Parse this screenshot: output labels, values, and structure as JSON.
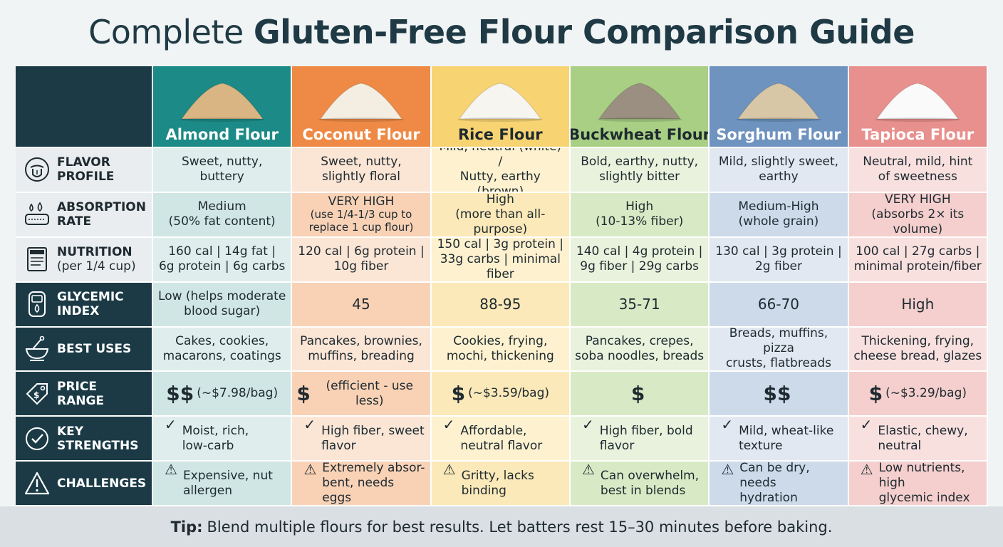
{
  "title": {
    "regular": "Complete",
    "bold": "Gluten-Free Flour Comparison Guide"
  },
  "flours": [
    {
      "name": "Almond Flour",
      "pile_color": "#d9b583"
    },
    {
      "name": "Coconut Flour",
      "pile_color": "#f4ede2"
    },
    {
      "name": "Rice Flour",
      "pile_color": "#f7f5f0"
    },
    {
      "name": "Buckwheat Flour",
      "pile_color": "#9a8f80"
    },
    {
      "name": "Sorghum Flour",
      "pile_color": "#d8c7a6"
    },
    {
      "name": "Tapioca Flour",
      "pile_color": "#fbfafa"
    }
  ],
  "rows": {
    "flavor": {
      "label": "FLAVOR PROFILE",
      "icon": "tongue-icon",
      "cells": [
        [
          "Sweet, nutty,",
          "buttery"
        ],
        [
          "Sweet, nutty,",
          "slightly floral"
        ],
        [
          "Mild, neutral (white) /",
          "Nutty, earthy (brown)"
        ],
        [
          "Bold, earthy, nutty,",
          "slightly bitter"
        ],
        [
          "Mild, slightly sweet,",
          "earthy"
        ],
        [
          "Neutral, mild, hint",
          "of sweetness"
        ]
      ]
    },
    "absorption": {
      "label": "ABSORPTION RATE",
      "icon": "water-drops-icon",
      "cells": [
        [
          "Medium",
          "(50% fat content)"
        ],
        [
          "VERY HIGH",
          "(use 1/4-1/3 cup to",
          "replace 1 cup flour)"
        ],
        [
          "High",
          "(more than all-purpose)"
        ],
        [
          "High",
          "(10-13% fiber)"
        ],
        [
          "Medium-High",
          "(whole grain)"
        ],
        [
          "VERY HIGH",
          "(absorbs 2× its volume)"
        ]
      ]
    },
    "nutrition": {
      "label": "NUTRITION",
      "sublabel": "(per 1/4 cup)",
      "icon": "nutrition-label-icon",
      "cells": [
        [
          "160 cal | 14g fat |",
          "6g protein | 6g carbs"
        ],
        [
          "120 cal | 6g protein |",
          "10g fiber"
        ],
        [
          "150 cal | 3g protein |",
          "33g carbs | minimal fiber"
        ],
        [
          "140 cal | 4g protein |",
          "9g fiber | 29g carbs"
        ],
        [
          "130 cal | 3g protein |",
          "2g fiber"
        ],
        [
          "100 cal | 27g carbs |",
          "minimal protein/fiber"
        ]
      ]
    },
    "glycemic": {
      "label": "GLYCEMIC INDEX",
      "icon": "glucose-meter-icon",
      "cells": [
        [
          "Low (helps moderate",
          "blood sugar)"
        ],
        [
          "45"
        ],
        [
          "88-95"
        ],
        [
          "35-71"
        ],
        [
          "66-70"
        ],
        [
          "High"
        ]
      ]
    },
    "uses": {
      "label": "BEST USES",
      "icon": "baking-bowl-icon",
      "cells": [
        [
          "Cakes, cookies,",
          "macarons, coatings"
        ],
        [
          "Pancakes, brownies,",
          "muffins, breading"
        ],
        [
          "Cookies, frying,",
          "mochi, thickening"
        ],
        [
          "Pancakes, crepes,",
          "soba noodles, breads"
        ],
        [
          "Breads, muffins, pizza",
          "crusts, flatbreads"
        ],
        [
          "Thickening, frying,",
          "cheese bread, glazes"
        ]
      ]
    },
    "price": {
      "label": "PRICE RANGE",
      "icon": "price-tag-icon",
      "cells": [
        {
          "sign": "$$",
          "note": "(~$7.98/bag)"
        },
        {
          "sign": "$",
          "note": "(efficient - use less)"
        },
        {
          "sign": "$",
          "note": "(~$3.59/bag)"
        },
        {
          "sign": "$",
          "note": ""
        },
        {
          "sign": "$$",
          "note": ""
        },
        {
          "sign": "$",
          "note": "(~$3.29/bag)"
        }
      ]
    },
    "strengths": {
      "label": "KEY STRENGTHS",
      "icon": "checkmark-circle-icon",
      "marker": "✓",
      "cells": [
        [
          "Moist, rich,",
          "low-carb"
        ],
        [
          "High fiber, sweet",
          "flavor"
        ],
        [
          "Affordable,",
          "neutral flavor"
        ],
        [
          "High fiber, bold",
          "flavor"
        ],
        [
          "Mild, wheat-like",
          "texture"
        ],
        [
          "Elastic, chewy,",
          "neutral"
        ]
      ]
    },
    "challenges": {
      "label": "CHALLENGES",
      "icon": "warning-triangle-icon",
      "marker": "⚠",
      "cells": [
        [
          "Expensive, nut",
          "allergen"
        ],
        [
          "Extremely absor-",
          "bent, needs eggs"
        ],
        [
          "Gritty, lacks",
          "binding"
        ],
        [
          "Can overwhelm,",
          "best in blends"
        ],
        [
          "Can be dry, needs",
          "hydration"
        ],
        [
          "Low nutrients, high",
          "glycemic index"
        ]
      ]
    }
  },
  "tip": {
    "lead": "Tip:",
    "text": "Blend multiple flours for best results. Let batters rest 15–30 minutes before baking."
  }
}
